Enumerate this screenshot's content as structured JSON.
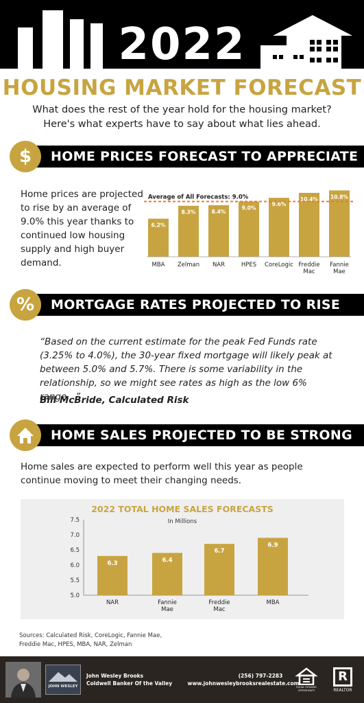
{
  "header": {
    "year": "2022",
    "title": "HOUSING MARKET FORECAST",
    "subtitle_line1": "What does the rest of the year hold for the housing market?",
    "subtitle_line2": "Here's what experts have to say about what lies ahead."
  },
  "colors": {
    "gold": "#c8a441",
    "black": "#000000",
    "dashed_line": "#e8792a",
    "chart_bg": "#efefef"
  },
  "sections": [
    {
      "icon": "dollar-icon",
      "glyph": "$",
      "title": "HOME PRICES FORECAST TO APPRECIATE"
    },
    {
      "icon": "percent-icon",
      "glyph": "%",
      "title": "MORTGAGE RATES PROJECTED TO RISE"
    },
    {
      "icon": "house-icon",
      "glyph": "",
      "title": "HOME SALES PROJECTED TO BE STRONG"
    }
  ],
  "prices": {
    "text": "Home prices are projected to rise by an average of 9.0% this year thanks to continued low housing supply and high buyer demand."
  },
  "mortgage": {
    "quote": "“Based on the current estimate for the peak Fed Funds rate (3.25% to 4.0%), the 30-year fixed mortgage will likely peak at between 5.0% and 5.7%. There is some variability in the relationship, so we might see rates as high as the low 6% range...”",
    "author": "Bill McBride, Calculated Risk"
  },
  "sales": {
    "text": "Home sales are expected to perform well this year as people continue moving to meet their changing needs."
  },
  "chart_data": [
    {
      "type": "bar",
      "title": "",
      "average_label": "Average of All Forecasts: 9.0%",
      "average_value": 9.0,
      "categories": [
        [
          "MBA"
        ],
        [
          "Zelman"
        ],
        [
          "NAR"
        ],
        [
          "HPES"
        ],
        [
          "CoreLogic"
        ],
        [
          "Freddie",
          "Mac"
        ],
        [
          "Fannie",
          "Mae"
        ]
      ],
      "values": [
        6.2,
        8.3,
        8.4,
        9.0,
        9.6,
        10.4,
        10.8
      ],
      "value_labels": [
        "6.2%",
        "8.3%",
        "8.4%",
        "9.0%",
        "9.6%",
        "10.4%",
        "10.8%"
      ],
      "ylim": [
        0,
        11.4
      ],
      "grid": false
    },
    {
      "type": "bar",
      "title": "2022 TOTAL HOME SALES FORECASTS",
      "subtitle": "In Millions",
      "categories": [
        [
          "NAR"
        ],
        [
          "Fannie",
          "Mae"
        ],
        [
          "Freddie",
          "Mac"
        ],
        [
          "MBA"
        ]
      ],
      "values": [
        6.3,
        6.4,
        6.7,
        6.9
      ],
      "value_labels": [
        "6.3",
        "6.4",
        "6.7",
        "6.9"
      ],
      "yticks": [
        "7.5",
        "7.0",
        "6.5",
        "6.0",
        "5.5",
        "5.0"
      ],
      "ylim": [
        5.0,
        7.5
      ],
      "grid": false
    }
  ],
  "sources": "Sources: Calculated Risk, CoreLogic, Fannie Mae, Freddie Mac, HPES, MBA, NAR, Zelman",
  "footer": {
    "agent_name": "John Wesley Brooks",
    "brokerage": "Coldwell Banker Of the Valley",
    "phone": "(256) 797-2283",
    "website": "www.johnwesleybrooksrealestate.com",
    "logo_text": "JOHN WESLEY",
    "equal_housing": "EQUAL HOUSING OPPORTUNITY",
    "realtor": "REALTOR",
    "realtor_mark": "R"
  }
}
